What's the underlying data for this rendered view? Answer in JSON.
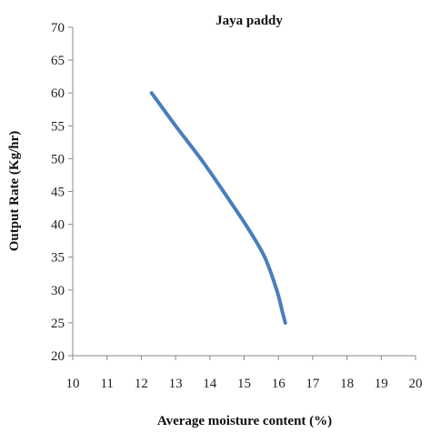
{
  "chart_data": {
    "type": "line",
    "title": "Jaya paddy",
    "xlabel": "Average moisture content (%)",
    "ylabel": "Output Rate (Kg/hr)",
    "xlim": [
      10,
      20
    ],
    "ylim": [
      20,
      70
    ],
    "xticks": [
      "10",
      "11",
      "12",
      "13",
      "14",
      "15",
      "16",
      "17",
      "18",
      "19",
      "20"
    ],
    "yticks": [
      "20",
      "25",
      "30",
      "35",
      "40",
      "45",
      "50",
      "55",
      "60",
      "65",
      "70"
    ],
    "grid": false,
    "legend": "none",
    "series": [
      {
        "color": "#4a7ebb",
        "x": [
          12.3,
          13.0,
          13.8,
          14.5,
          15.1,
          15.6,
          15.95,
          16.1,
          16.2
        ],
        "y": [
          60,
          55,
          49.5,
          44.2,
          39.5,
          35,
          30,
          27,
          25
        ]
      }
    ]
  }
}
